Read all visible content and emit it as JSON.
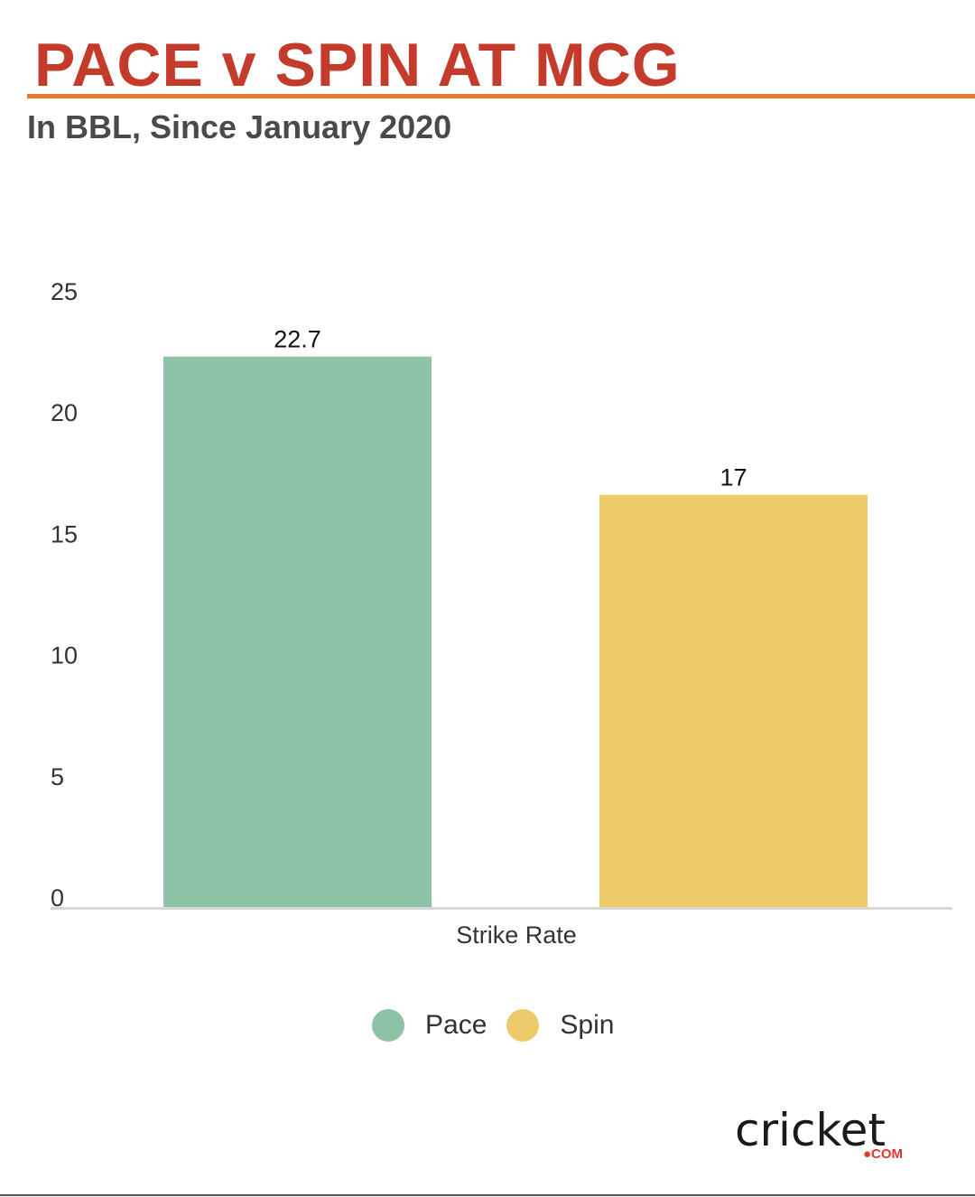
{
  "title": "PACE v SPIN AT MCG",
  "subtitle": "In BBL, Since January 2020",
  "colors": {
    "title": "#c43b2b",
    "rule": "#e87a2e",
    "pace": "#8fc3a7",
    "spin": "#eecb6a",
    "axis": "#d6d6d6"
  },
  "chart_data": {
    "type": "bar",
    "categories": [
      "Strike Rate"
    ],
    "series": [
      {
        "name": "Pace",
        "values": [
          22.7
        ]
      },
      {
        "name": "Spin",
        "values": [
          17
        ]
      }
    ],
    "ylim": [
      0,
      25
    ],
    "yticks": [
      "0",
      "5",
      "10",
      "15",
      "20",
      "25"
    ],
    "data_labels": [
      "22.7",
      "17"
    ],
    "grid": false,
    "legend_position": "bottom"
  },
  "legend": {
    "items": [
      {
        "label": "Pace",
        "color_key": "pace"
      },
      {
        "label": "Spin",
        "color_key": "spin"
      }
    ]
  },
  "logo": {
    "word": "cricket",
    "suffix": "●COM"
  }
}
